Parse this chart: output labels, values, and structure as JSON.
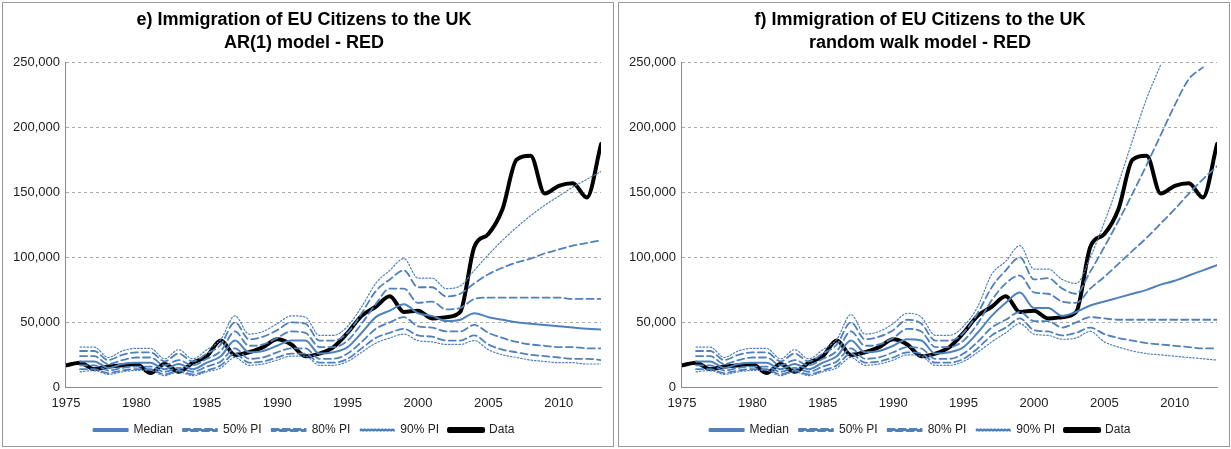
{
  "chart_data": [
    {
      "type": "line",
      "title": "e) Immigration of EU Citizens to the UK",
      "subtitle": "AR(1) model - RED",
      "x": [
        1975,
        1976,
        1977,
        1978,
        1979,
        1980,
        1981,
        1982,
        1983,
        1984,
        1985,
        1986,
        1987,
        1988,
        1989,
        1990,
        1991,
        1992,
        1993,
        1994,
        1995,
        1996,
        1997,
        1998,
        1999,
        2000,
        2001,
        2002,
        2003,
        2004,
        2005,
        2006,
        2007,
        2008,
        2009,
        2010,
        2011,
        2012,
        2013
      ],
      "xlim": [
        1975,
        2013
      ],
      "xticks": [
        1975,
        1980,
        1985,
        1990,
        1995,
        2000,
        2005,
        2010
      ],
      "ylim": [
        0,
        250000
      ],
      "yticks": [
        0,
        {
          "value": 50000,
          "label": "50,000"
        },
        {
          "value": 100000,
          "label": "100,000"
        },
        {
          "value": 150000,
          "label": "150,000"
        },
        {
          "value": 200000,
          "label": "200,000"
        },
        {
          "value": 250000,
          "label": "250,000"
        }
      ],
      "grid": "y",
      "legend": "bottom",
      "marker": "none",
      "series": [
        {
          "name": "Median",
          "color": "#4f81bd",
          "line_style": "solid",
          "values": [
            null,
            20000,
            20000,
            15000,
            18000,
            19000,
            19000,
            14000,
            18000,
            14000,
            19000,
            24000,
            36000,
            27000,
            28000,
            32000,
            36000,
            36000,
            26000,
            27000,
            31000,
            42000,
            54000,
            59000,
            64000,
            57000,
            55000,
            51000,
            52000,
            57000,
            54000,
            52000,
            50000,
            49000,
            48000,
            47000,
            46000,
            45000,
            44500
          ]
        },
        {
          "name": "50% PI",
          "color": "#4f81bd",
          "line_style": "dashed",
          "values": [
            null,
            24000,
            24000,
            18000,
            21000,
            23000,
            23000,
            17000,
            21000,
            17000,
            22000,
            28000,
            43000,
            32000,
            33000,
            38000,
            43000,
            42000,
            31000,
            31000,
            36000,
            49000,
            64000,
            76000,
            76000,
            65000,
            66000,
            60000,
            61000,
            68000,
            69000,
            69000,
            69000,
            69000,
            69000,
            69000,
            68000,
            68000,
            68000
          ]
        },
        {
          "color": "#4f81bd",
          "line_style": "dashed",
          "values": [
            null,
            17000,
            17000,
            13000,
            15000,
            16000,
            16000,
            12000,
            15000,
            12000,
            16000,
            20000,
            30000,
            22000,
            23000,
            27000,
            30000,
            30000,
            22000,
            22000,
            26000,
            35000,
            45000,
            50000,
            54000,
            47000,
            46000,
            43000,
            43000,
            48000,
            42000,
            38000,
            35000,
            33000,
            32000,
            31000,
            31000,
            30000,
            30000
          ]
        },
        {
          "name": "80% PI",
          "color": "#4f81bd",
          "line_style": "dashed",
          "values": [
            null,
            28000,
            28000,
            21000,
            25000,
            27000,
            27000,
            20000,
            26000,
            20000,
            26000,
            33000,
            50000,
            37000,
            39000,
            44000,
            50000,
            49000,
            36000,
            36000,
            42000,
            57000,
            74000,
            83000,
            90000,
            77000,
            77000,
            70000,
            72000,
            80000,
            87000,
            92000,
            96000,
            99000,
            103000,
            106000,
            109000,
            111000,
            113000
          ]
        },
        {
          "color": "#4f81bd",
          "line_style": "dashed",
          "values": [
            null,
            14000,
            14000,
            11000,
            13000,
            14000,
            14000,
            10000,
            13000,
            10000,
            13000,
            17000,
            26000,
            19000,
            20000,
            23000,
            26000,
            26000,
            19000,
            19000,
            22000,
            30000,
            38000,
            42000,
            45000,
            40000,
            39000,
            36000,
            36000,
            40000,
            33000,
            29000,
            27000,
            25000,
            24000,
            23000,
            22000,
            22000,
            21000
          ]
        },
        {
          "name": "90% PI",
          "color": "#4f81bd",
          "line_style": "dotted",
          "values": [
            null,
            31000,
            31000,
            23000,
            28000,
            30000,
            30000,
            22000,
            29000,
            22000,
            29000,
            37000,
            55000,
            41000,
            43000,
            49000,
            55000,
            54000,
            40000,
            40000,
            47000,
            62000,
            80000,
            90000,
            99000,
            84000,
            84000,
            76000,
            78000,
            90000,
            102000,
            113000,
            123000,
            132000,
            140000,
            147000,
            154000,
            160000,
            166000
          ]
        },
        {
          "color": "#4f81bd",
          "line_style": "dotted",
          "values": [
            null,
            12000,
            13000,
            10000,
            12000,
            13000,
            13000,
            9000,
            12000,
            9000,
            12000,
            15000,
            23000,
            17000,
            18000,
            21000,
            24000,
            24000,
            17000,
            17000,
            20000,
            27000,
            34000,
            38000,
            41000,
            36000,
            35000,
            33000,
            33000,
            36000,
            29000,
            25000,
            23000,
            21000,
            20000,
            19000,
            19000,
            18000,
            18000
          ]
        },
        {
          "name": "Data",
          "color": "#000000",
          "line_style": "solid",
          "values": [
            17000,
            19000,
            14000,
            16000,
            17000,
            18000,
            11000,
            18000,
            12000,
            19000,
            24000,
            36000,
            25000,
            27000,
            31000,
            37000,
            33000,
            24000,
            26000,
            31000,
            42000,
            55000,
            62000,
            70000,
            58000,
            59000,
            53000,
            54000,
            58000,
            108000,
            118000,
            137000,
            175000,
            178000,
            149000,
            155000,
            157000,
            146000,
            187000
          ]
        }
      ]
    },
    {
      "type": "line",
      "title": "f) Immigration of EU Citizens to the UK",
      "subtitle": "random walk model - RED",
      "x": [
        1975,
        1976,
        1977,
        1978,
        1979,
        1980,
        1981,
        1982,
        1983,
        1984,
        1985,
        1986,
        1987,
        1988,
        1989,
        1990,
        1991,
        1992,
        1993,
        1994,
        1995,
        1996,
        1997,
        1998,
        1999,
        2000,
        2001,
        2002,
        2003,
        2004,
        2005,
        2006,
        2007,
        2008,
        2009,
        2010,
        2011,
        2012,
        2013
      ],
      "xlim": [
        1975,
        2013
      ],
      "xticks": [
        1975,
        1980,
        1985,
        1990,
        1995,
        2000,
        2005,
        2010
      ],
      "ylim": [
        0,
        250000
      ],
      "yticks": [
        0,
        {
          "value": 50000,
          "label": "50,000"
        },
        {
          "value": 100000,
          "label": "100,000"
        },
        {
          "value": 150000,
          "label": "150,000"
        },
        {
          "value": 200000,
          "label": "200,000"
        },
        {
          "value": 250000,
          "label": "250,000"
        }
      ],
      "grid": "y",
      "legend": "bottom",
      "marker": "none",
      "series": [
        {
          "name": "Median",
          "color": "#4f81bd",
          "line_style": "solid",
          "values": [
            null,
            20000,
            20000,
            15000,
            18000,
            19000,
            19000,
            14000,
            18000,
            14000,
            19000,
            24000,
            36000,
            27000,
            28000,
            32000,
            37000,
            36000,
            26000,
            27000,
            31000,
            42000,
            55000,
            65000,
            73000,
            61000,
            61000,
            55000,
            58000,
            63000,
            66000,
            69000,
            72000,
            75000,
            79000,
            82000,
            86000,
            90000,
            94000
          ]
        },
        {
          "name": "50% PI",
          "color": "#4f81bd",
          "line_style": "dashed",
          "values": [
            null,
            24000,
            24000,
            18000,
            21000,
            23000,
            23000,
            17000,
            21000,
            17000,
            22000,
            28000,
            43000,
            32000,
            33000,
            38000,
            45000,
            43000,
            31000,
            31000,
            36000,
            49000,
            67000,
            80000,
            86000,
            73000,
            72000,
            66000,
            65000,
            76000,
            85000,
            95000,
            105000,
            115000,
            126000,
            137000,
            149000,
            160000,
            170000
          ]
        },
        {
          "color": "#4f81bd",
          "line_style": "dashed",
          "values": [
            null,
            17000,
            17000,
            13000,
            15000,
            16000,
            16000,
            12000,
            15000,
            12000,
            16000,
            20000,
            30000,
            22000,
            23000,
            27000,
            31000,
            30000,
            22000,
            22000,
            26000,
            35000,
            46000,
            52000,
            58000,
            51000,
            51000,
            46000,
            50000,
            54000,
            53000,
            52000,
            52000,
            52000,
            52000,
            52000,
            52000,
            52000,
            52000
          ]
        },
        {
          "name": "80% PI",
          "color": "#4f81bd",
          "line_style": "dashed",
          "values": [
            null,
            28000,
            28000,
            21000,
            25000,
            27000,
            27000,
            20000,
            26000,
            20000,
            26000,
            33000,
            50000,
            37000,
            39000,
            44000,
            52000,
            49000,
            36000,
            36000,
            42000,
            57000,
            77000,
            90000,
            100000,
            83000,
            84000,
            76000,
            72000,
            89000,
            108000,
            128000,
            149000,
            171000,
            194000,
            217000,
            237000,
            246000,
            null
          ]
        },
        {
          "color": "#4f81bd",
          "line_style": "dashed",
          "values": [
            null,
            14000,
            14000,
            11000,
            13000,
            14000,
            14000,
            10000,
            13000,
            10000,
            13000,
            17000,
            26000,
            19000,
            20000,
            23000,
            27000,
            26000,
            19000,
            19000,
            22000,
            30000,
            40000,
            46000,
            53000,
            44000,
            43000,
            40000,
            42000,
            46000,
            41000,
            38000,
            36000,
            34000,
            33000,
            32000,
            31000,
            30000,
            30000
          ]
        },
        {
          "name": "90% PI",
          "color": "#4f81bd",
          "line_style": "dotted",
          "values": [
            null,
            31000,
            31000,
            23000,
            28000,
            30000,
            30000,
            22000,
            29000,
            22000,
            29000,
            37000,
            56000,
            41000,
            43000,
            49000,
            57000,
            54000,
            40000,
            40000,
            47000,
            62000,
            87000,
            97000,
            109000,
            91000,
            91000,
            83000,
            80000,
            100000,
            127000,
            157000,
            190000,
            222000,
            248000,
            null,
            null,
            null,
            null
          ]
        },
        {
          "color": "#4f81bd",
          "line_style": "dotted",
          "values": [
            null,
            12000,
            13000,
            10000,
            12000,
            13000,
            13000,
            9000,
            12000,
            9000,
            12000,
            15000,
            23000,
            17000,
            18000,
            21000,
            25000,
            24000,
            17000,
            17000,
            20000,
            27000,
            35000,
            42000,
            49000,
            41000,
            40000,
            37000,
            38000,
            43000,
            35000,
            31000,
            28000,
            26000,
            25000,
            24000,
            23000,
            22000,
            21000
          ]
        },
        {
          "name": "Data",
          "color": "#000000",
          "line_style": "solid",
          "values": [
            17000,
            19000,
            14000,
            16000,
            17000,
            18000,
            11000,
            18000,
            12000,
            19000,
            24000,
            36000,
            25000,
            27000,
            31000,
            37000,
            33000,
            24000,
            26000,
            31000,
            42000,
            55000,
            62000,
            70000,
            58000,
            59000,
            53000,
            54000,
            58000,
            108000,
            118000,
            137000,
            175000,
            178000,
            149000,
            155000,
            157000,
            146000,
            187000
          ]
        }
      ]
    }
  ]
}
